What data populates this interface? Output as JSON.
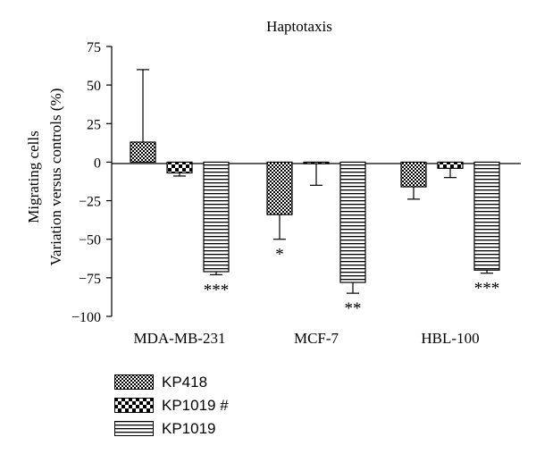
{
  "chart_data": {
    "type": "bar",
    "title": "Haptotaxis",
    "ylabel_line1": "Migrating cells",
    "ylabel_line2": "Variation versus controls (%)",
    "xlabel": "",
    "categories": [
      "MDA-MB-231",
      "MCF-7",
      "HBL-100"
    ],
    "ylim": [
      -100,
      75
    ],
    "yticks": [
      75,
      50,
      25,
      0,
      -25,
      -50,
      -75,
      -100
    ],
    "grid": false,
    "legend_position": "bottom-left",
    "series": [
      {
        "name": "KP418",
        "pattern": "checker-fine",
        "values": [
          13,
          -34,
          -16
        ],
        "errors": [
          47,
          16,
          8
        ],
        "error_side": [
          "up",
          "down",
          "down"
        ]
      },
      {
        "name": "KP1019 #",
        "pattern": "checker-coarse",
        "values": [
          -7,
          -1,
          -4
        ],
        "errors": [
          2,
          14,
          6
        ],
        "error_side": [
          "down",
          "down",
          "down"
        ]
      },
      {
        "name": "KP1019",
        "pattern": "horizontal-stripes",
        "values": [
          -71,
          -78,
          -70
        ],
        "errors": [
          2,
          7,
          2
        ],
        "error_side": [
          "down",
          "down",
          "down"
        ]
      }
    ],
    "annotations": [
      {
        "category": "MDA-MB-231",
        "series": "KP1019",
        "text": "***"
      },
      {
        "category": "MCF-7",
        "series": "KP418",
        "text": "*"
      },
      {
        "category": "MCF-7",
        "series": "KP1019",
        "text": "**"
      },
      {
        "category": "HBL-100",
        "series": "KP1019",
        "text": "***"
      }
    ]
  }
}
